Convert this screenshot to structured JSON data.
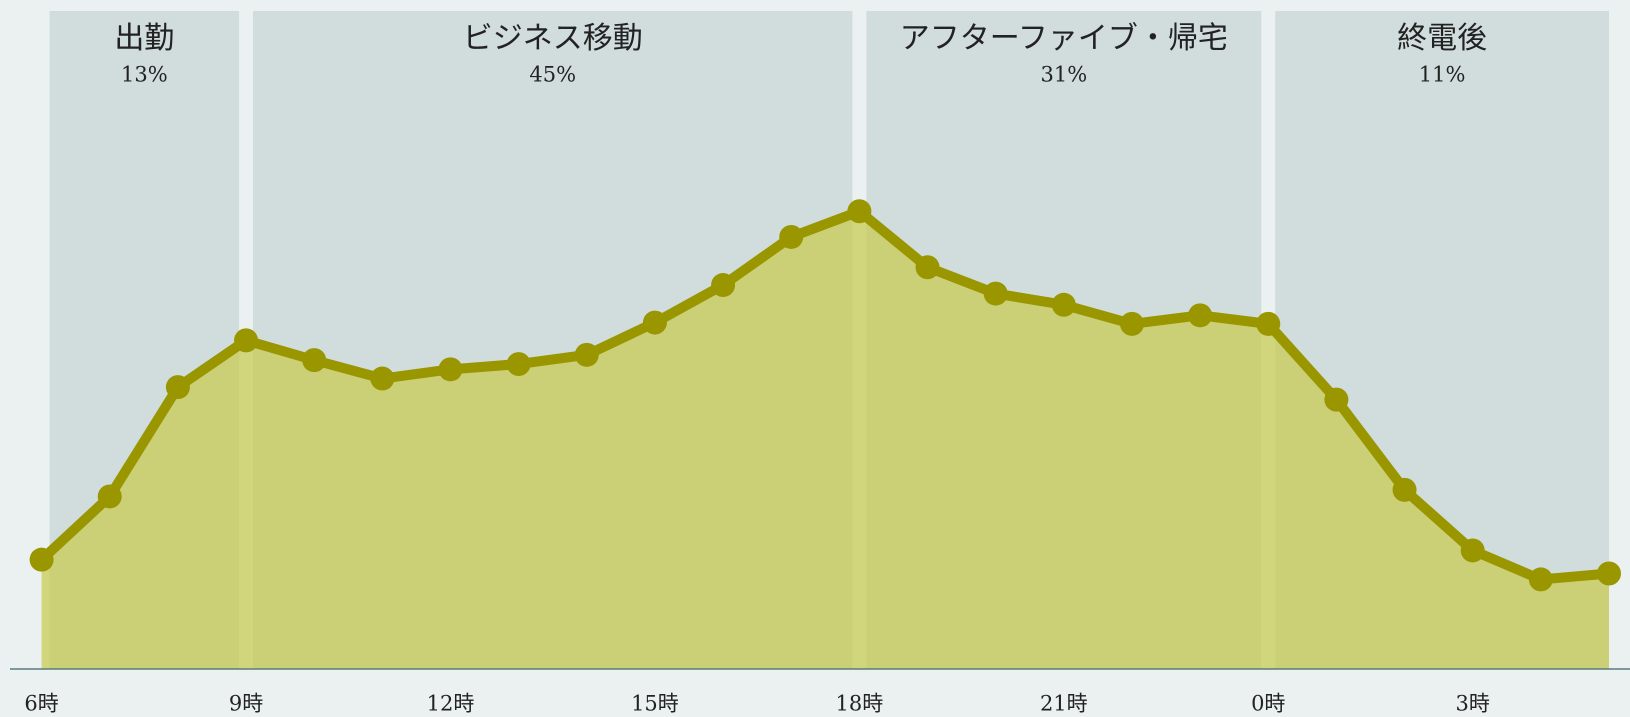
{
  "chart_data": {
    "type": "line",
    "categories": [
      "6時",
      null,
      null,
      "9時",
      null,
      null,
      "12時",
      null,
      null,
      "15時",
      null,
      null,
      "18時",
      null,
      null,
      "21時",
      null,
      null,
      "0時",
      null,
      null,
      "3時",
      null,
      null
    ],
    "series": [
      {
        "color": "#999600",
        "fill": "#c8cc55",
        "values": [
          16.6,
          26.2,
          42.8,
          49.9,
          46.9,
          44.1,
          45.5,
          46.3,
          47.7,
          52.6,
          58.3,
          65.6,
          69.5,
          61.0,
          57.0,
          55.3,
          52.4,
          53.7,
          52.4,
          40.9,
          27.2,
          18.0,
          13.6,
          14.5
        ]
      }
    ],
    "ylim": [
      0,
      100
    ],
    "sections": [
      {
        "name": "出勤",
        "value": 13,
        "value_label": "13%"
      },
      {
        "name": "ビジネス移動",
        "value": 45,
        "value_label": "45%"
      },
      {
        "name": "アフターファイブ・帰宅",
        "value": 31,
        "value_label": "31%"
      },
      {
        "name": "終電後",
        "value": 11,
        "value_label": "11%"
      }
    ]
  }
}
